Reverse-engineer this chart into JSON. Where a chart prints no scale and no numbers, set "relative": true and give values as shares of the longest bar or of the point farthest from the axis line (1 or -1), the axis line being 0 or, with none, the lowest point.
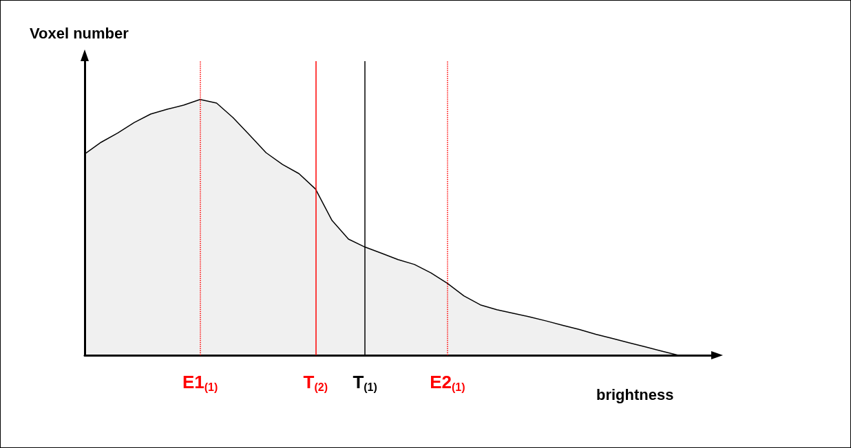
{
  "chart_data": {
    "type": "area",
    "relative": true,
    "xlabel": "brightness",
    "ylabel": "Voxel number",
    "tick_labels": "x",
    "grid": false,
    "marker": "none",
    "line_style": "solid",
    "categories": [
      null,
      null,
      null,
      null,
      null,
      null,
      null,
      "E1$_{(1)}$",
      null,
      null,
      null,
      null,
      null,
      null,
      "T$_{(2)}$",
      null,
      null,
      "T$_{(1)}$",
      null,
      null,
      null,
      null,
      "E2$_{(1)}$",
      null,
      null,
      null,
      null,
      null,
      null,
      null,
      null,
      null,
      null,
      null,
      null,
      null,
      null,
      null,
      null
    ],
    "series": [
      {
        "color": "#000000",
        "values": [
          0.787,
          0.833,
          0.869,
          0.91,
          0.943,
          0.962,
          0.978,
          1.0,
          0.986,
          0.929,
          0.861,
          0.792,
          0.746,
          0.71,
          0.65,
          0.527,
          0.454,
          0.423,
          0.399,
          0.374,
          0.355,
          0.322,
          0.281,
          0.232,
          0.197,
          0.178,
          0.164,
          0.15,
          0.134,
          0.117,
          0.101,
          0.082,
          0.066,
          0.049,
          0.033,
          0.016,
          0,
          null,
          null
        ]
      }
    ],
    "ref_lines": [
      {
        "axis": "x",
        "value": "E1$_{(1)}$",
        "color": "#ff0000",
        "line_style": "dotted"
      },
      {
        "axis": "x",
        "value": "T$_{(2)}$",
        "color": "#ff0000",
        "line_style": "solid"
      },
      {
        "axis": "x",
        "value": "T$_{(1)}$",
        "color": "#000000",
        "line_style": "solid"
      },
      {
        "axis": "x",
        "value": "E2$_{(1)}$",
        "color": "#ff0000",
        "line_style": "dotted"
      }
    ]
  }
}
